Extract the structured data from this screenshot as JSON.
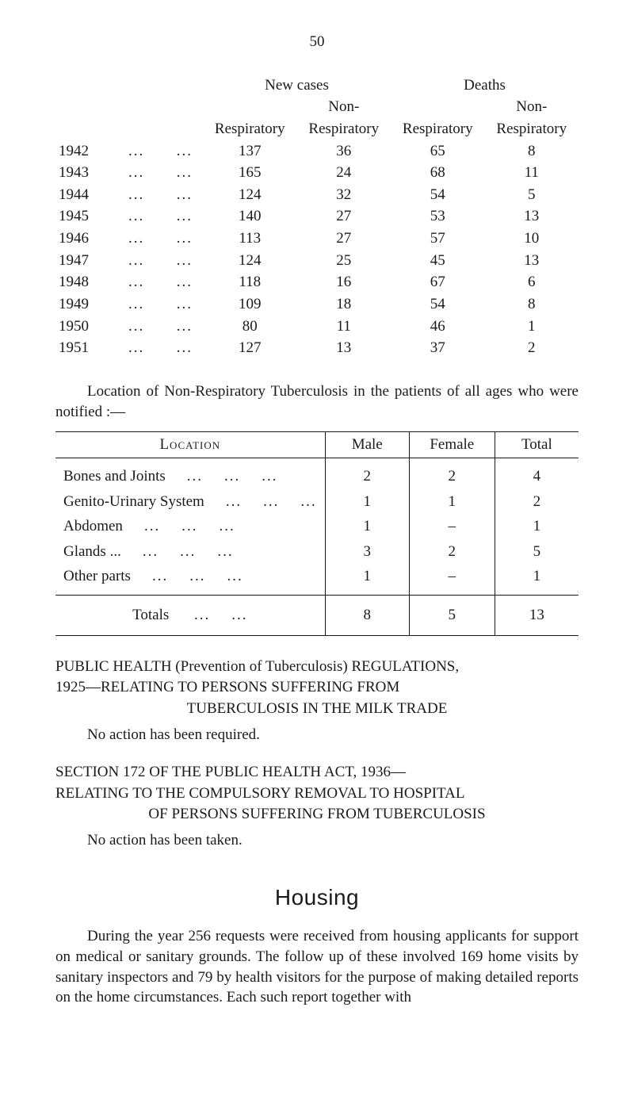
{
  "page_number": "50",
  "stats_table": {
    "super_headers": {
      "new_cases": "New cases",
      "deaths": "Deaths"
    },
    "sub_headers": {
      "resp": "Respiratory",
      "nonresp": "Non-",
      "nonresp2": "Respiratory"
    },
    "rows": [
      {
        "year": "1942",
        "nc_resp": "137",
        "nc_non": "36",
        "d_resp": "65",
        "d_non": "8"
      },
      {
        "year": "1943",
        "nc_resp": "165",
        "nc_non": "24",
        "d_resp": "68",
        "d_non": "11"
      },
      {
        "year": "1944",
        "nc_resp": "124",
        "nc_non": "32",
        "d_resp": "54",
        "d_non": "5"
      },
      {
        "year": "1945",
        "nc_resp": "140",
        "nc_non": "27",
        "d_resp": "53",
        "d_non": "13"
      },
      {
        "year": "1946",
        "nc_resp": "113",
        "nc_non": "27",
        "d_resp": "57",
        "d_non": "10"
      },
      {
        "year": "1947",
        "nc_resp": "124",
        "nc_non": "25",
        "d_resp": "45",
        "d_non": "13"
      },
      {
        "year": "1948",
        "nc_resp": "118",
        "nc_non": "16",
        "d_resp": "67",
        "d_non": "6"
      },
      {
        "year": "1949",
        "nc_resp": "109",
        "nc_non": "18",
        "d_resp": "54",
        "d_non": "8"
      },
      {
        "year": "1950",
        "nc_resp": "80",
        "nc_non": "11",
        "d_resp": "46",
        "d_non": "1"
      },
      {
        "year": "1951",
        "nc_resp": "127",
        "nc_non": "13",
        "d_resp": "37",
        "d_non": "2"
      }
    ]
  },
  "location_intro": "Location of Non-Respiratory Tuberculosis in the patients of all ages who were notified :—",
  "loc_table": {
    "columns": {
      "loc": "Location",
      "male": "Male",
      "female": "Female",
      "total": "Total"
    },
    "rows": [
      {
        "label": "Bones and Joints",
        "male": "2",
        "female": "2",
        "total": "4"
      },
      {
        "label": "Genito-Urinary System",
        "male": "1",
        "female": "1",
        "total": "2"
      },
      {
        "label": "Abdomen",
        "male": "1",
        "female": "–",
        "total": "1"
      },
      {
        "label": "Glands ...",
        "male": "3",
        "female": "2",
        "total": "5"
      },
      {
        "label": "Other parts",
        "male": "1",
        "female": "–",
        "total": "1"
      }
    ],
    "totals": {
      "label": "Totals",
      "male": "8",
      "female": "5",
      "total": "13"
    }
  },
  "section1": {
    "line1": "PUBLIC HEALTH (Prevention of Tuberculosis) REGULATIONS,",
    "line2": "1925—RELATING   TO   PERSONS   SUFFERING   FROM",
    "line3": "TUBERCULOSIS IN THE MILK TRADE",
    "noaction": "No action has been required."
  },
  "section2": {
    "line1": "SECTION 172 OF THE PUBLIC HEALTH ACT, 1936—",
    "line2": "RELATING TO THE COMPULSORY REMOVAL TO HOSPITAL",
    "line3": "OF PERSONS SUFFERING FROM TUBERCULOSIS",
    "noaction": "No action has been taken."
  },
  "housing": {
    "heading": "Housing",
    "para": "During the year 256 requests were received from housing applicants for support on medical or sanitary grounds. The follow up of these involved 169 home visits by sanitary inspectors and 79 by health visitors for the purpose of making detailed reports on the home circumstances. Each such report together with"
  },
  "colors": {
    "text": "#1a1a1a",
    "background": "#ffffff",
    "rule": "#1a1a1a"
  }
}
